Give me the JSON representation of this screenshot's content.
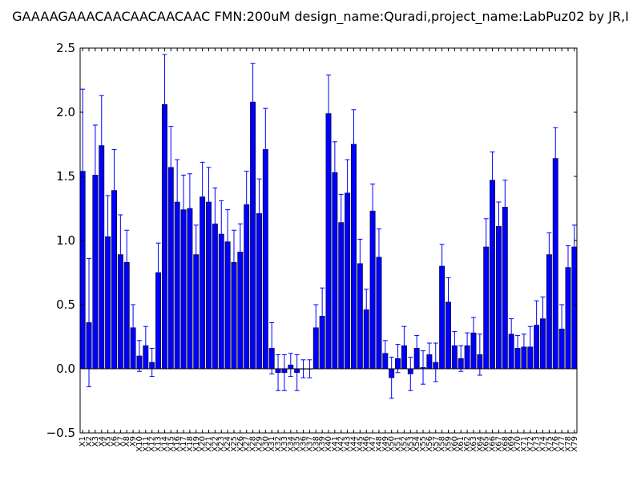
{
  "chart_data": {
    "type": "bar",
    "title": "GAAAAGAAACAACAACAACAAC  FMN:200uM  design_name:Quradi,project_name:LabPuz02 by JR,I",
    "xlabel": "",
    "ylabel": "",
    "ylim": [
      -0.5,
      2.5
    ],
    "yticks": [
      -0.5,
      0.0,
      0.5,
      1.0,
      1.5,
      2.0,
      2.5
    ],
    "ytick_labels": [
      "−0.5",
      "0.0",
      "0.5",
      "1.0",
      "1.5",
      "2.0",
      "2.5"
    ],
    "grid": false,
    "legend": "none",
    "bar_color": "#0000ff",
    "edge_color": "#000000",
    "error_color": "#0000ff",
    "categories": [
      "X1",
      "X2",
      "X3",
      "X4",
      "X5",
      "X6",
      "X7",
      "X8",
      "X9",
      "X10",
      "X11",
      "X12",
      "X13",
      "X14",
      "X15",
      "X16",
      "X17",
      "X18",
      "X19",
      "X20",
      "X21",
      "X22",
      "X23",
      "X24",
      "X25",
      "X26",
      "X27",
      "X28",
      "X29",
      "X30",
      "X31",
      "X32",
      "X33",
      "X34",
      "X35",
      "X36",
      "X37",
      "X38",
      "X39",
      "X40",
      "X41",
      "X42",
      "X43",
      "X44",
      "X45",
      "X46",
      "X47",
      "X48",
      "X49",
      "X50",
      "X51",
      "X52",
      "X53",
      "X54",
      "X55",
      "X56",
      "X57",
      "X58",
      "X59",
      "X60",
      "X61",
      "X62",
      "X63",
      "X64",
      "X65",
      "X66",
      "X67",
      "X68",
      "X69",
      "X70",
      "X71",
      "X72",
      "X73",
      "X74",
      "X75",
      "X76",
      "X77",
      "X78",
      "X79"
    ],
    "values": [
      1.54,
      0.36,
      1.51,
      1.74,
      1.03,
      1.39,
      0.89,
      0.83,
      0.32,
      0.1,
      0.18,
      0.05,
      0.75,
      2.06,
      1.57,
      1.3,
      1.24,
      1.25,
      0.89,
      1.34,
      1.3,
      1.13,
      1.05,
      0.99,
      0.83,
      0.91,
      1.28,
      2.08,
      1.21,
      1.71,
      0.16,
      -0.03,
      -0.03,
      0.03,
      -0.03,
      0.0,
      0.0,
      0.32,
      0.41,
      1.99,
      1.53,
      1.14,
      1.37,
      1.75,
      0.82,
      0.46,
      1.23,
      0.87,
      0.12,
      -0.07,
      0.08,
      0.18,
      -0.04,
      0.16,
      0.01,
      0.11,
      0.05,
      0.8,
      0.52,
      0.18,
      0.08,
      0.18,
      0.28,
      0.11,
      0.95,
      1.47,
      1.11,
      1.26,
      0.27,
      0.16,
      0.17,
      0.17,
      0.34,
      0.39,
      0.89,
      1.64,
      0.31,
      0.79,
      0.95
    ],
    "errors": [
      0.64,
      0.5,
      0.39,
      0.39,
      0.32,
      0.32,
      0.31,
      0.25,
      0.18,
      0.12,
      0.15,
      0.11,
      0.23,
      0.39,
      0.32,
      0.33,
      0.27,
      0.27,
      0.23,
      0.27,
      0.27,
      0.28,
      0.26,
      0.25,
      0.25,
      0.22,
      0.26,
      0.3,
      0.27,
      0.32,
      0.2,
      0.14,
      0.14,
      0.09,
      0.14,
      0.07,
      0.07,
      0.18,
      0.22,
      0.3,
      0.24,
      0.22,
      0.26,
      0.27,
      0.19,
      0.16,
      0.21,
      0.22,
      0.1,
      0.16,
      0.11,
      0.15,
      0.13,
      0.1,
      0.13,
      0.09,
      0.15,
      0.17,
      0.19,
      0.11,
      0.1,
      0.1,
      0.12,
      0.16,
      0.22,
      0.22,
      0.19,
      0.21,
      0.12,
      0.1,
      0.1,
      0.16,
      0.19,
      0.17,
      0.17,
      0.24,
      0.19,
      0.17,
      0.17
    ]
  }
}
